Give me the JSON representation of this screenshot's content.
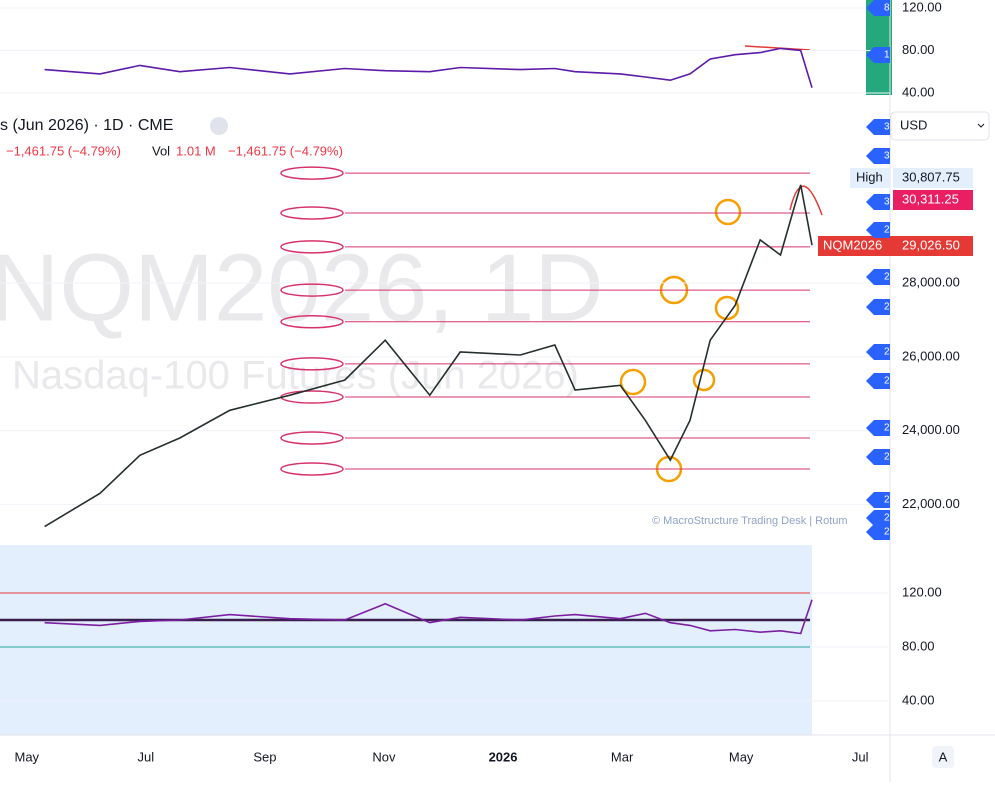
{
  "header": {
    "symbol": "s (Jun 2026) · 1D · CME",
    "change": "−1,461.75 (−4.79%)",
    "vol_label": "Vol",
    "vol": "1.01 M",
    "change2": "−1,461.75 (−4.79%)",
    "currency": "USD",
    "watermark": "NQM2026, 1D",
    "watermark2": "i Nasdaq-100 Futures (Jun 2026)",
    "copyright": "© MacroStructure Trading Desk | Rotum",
    "auto": "A"
  },
  "price_labels": {
    "high": "High",
    "high_value": "30,807.75",
    "level": "30,311.25",
    "symbol": "NQM2026",
    "last": "29,026.50"
  },
  "tags": [
    "8",
    "1",
    "3",
    "3",
    "3",
    "2",
    "2",
    "2",
    "2",
    "2",
    "2",
    "2",
    "2",
    "2",
    "2"
  ],
  "chart_data": [
    {
      "type": "line",
      "x": [
        4.3,
        5.23,
        5.9,
        6.57,
        7.41,
        8.42,
        9.34,
        10.02,
        10.77,
        11.28,
        12.29,
        12.87,
        13.21,
        13.97,
        14.39,
        14.81,
        15.14,
        15.48,
        15.9,
        16.32,
        16.66,
        17.0,
        17.19
      ],
      "series": [
        {
          "color": "#5b1aa8",
          "values": [
            62,
            58,
            66,
            60,
            64,
            58,
            63,
            61,
            60,
            64,
            62,
            63,
            60,
            58,
            55,
            52,
            58,
            72,
            76,
            78,
            82,
            80,
            45
          ]
        }
      ],
      "xlim": [
        3.55,
        18.5
      ],
      "ylim": [
        33.4,
        127.5
      ],
      "yticks": [
        {
          "value": 120,
          "label": "120.00"
        },
        {
          "value": 80,
          "label": "80.00"
        },
        {
          "value": 40,
          "label": "40.00"
        }
      ]
    },
    {
      "type": "line",
      "x": [
        4.3,
        5.23,
        5.9,
        6.57,
        7.41,
        8.42,
        9.34,
        10.02,
        10.77,
        11.28,
        12.29,
        12.87,
        13.21,
        13.97,
        14.39,
        14.81,
        15.14,
        15.48,
        15.9,
        16.32,
        16.66,
        17.0,
        17.19
      ],
      "series": [
        {
          "color": "#26302f",
          "values": [
            21400,
            22300,
            23330,
            23800,
            24550,
            24960,
            25370,
            26450,
            24960,
            26130,
            26050,
            26320,
            25100,
            25230,
            24280,
            23200,
            24280,
            26450,
            27400,
            29170,
            28760,
            30660,
            29030
          ]
        }
      ],
      "levels": [
        30980,
        29900,
        28980,
        27810,
        26950,
        25810,
        24910,
        23800,
        22960
      ],
      "level_color": "#d6336c",
      "xlim": [
        3.55,
        18.5
      ],
      "ylim": [
        20900,
        31200
      ],
      "yticks": [
        {
          "value": 28000,
          "label": "28,000.00"
        },
        {
          "value": 26000,
          "label": "26,000.00"
        },
        {
          "value": 24000,
          "label": "24,000.00"
        },
        {
          "value": 22000,
          "label": "22,000.00"
        }
      ],
      "xticks": [
        {
          "value": 4,
          "label": "May"
        },
        {
          "value": 6,
          "label": "Jul"
        },
        {
          "value": 8,
          "label": "Sep"
        },
        {
          "value": 10,
          "label": "Nov"
        },
        {
          "value": 12,
          "label": "2026"
        },
        {
          "value": 14,
          "label": "Mar"
        },
        {
          "value": 16,
          "label": "May"
        },
        {
          "value": 18,
          "label": "Jul"
        }
      ]
    },
    {
      "type": "line",
      "x": [
        4.3,
        5.23,
        5.9,
        6.57,
        7.41,
        8.42,
        9.34,
        10.02,
        10.77,
        11.28,
        12.29,
        12.87,
        13.21,
        13.97,
        14.39,
        14.81,
        15.14,
        15.48,
        15.9,
        16.32,
        16.66,
        17.0,
        17.19
      ],
      "series": [
        {
          "color": "#7b1fa2",
          "values": [
            98,
            96,
            99,
            100,
            104,
            101,
            100,
            112,
            98,
            102,
            100,
            103,
            104,
            101,
            105,
            98,
            96,
            92,
            93,
            91,
            92,
            90,
            115
          ]
        }
      ],
      "levels": [
        120,
        100,
        80
      ],
      "xlim": [
        3.55,
        18.5
      ],
      "ylim": [
        14.8,
        155.6
      ],
      "yticks": [
        {
          "value": 120,
          "label": "120.00"
        },
        {
          "value": 80,
          "label": "80.00"
        },
        {
          "value": 40,
          "label": "40.00"
        }
      ]
    }
  ]
}
